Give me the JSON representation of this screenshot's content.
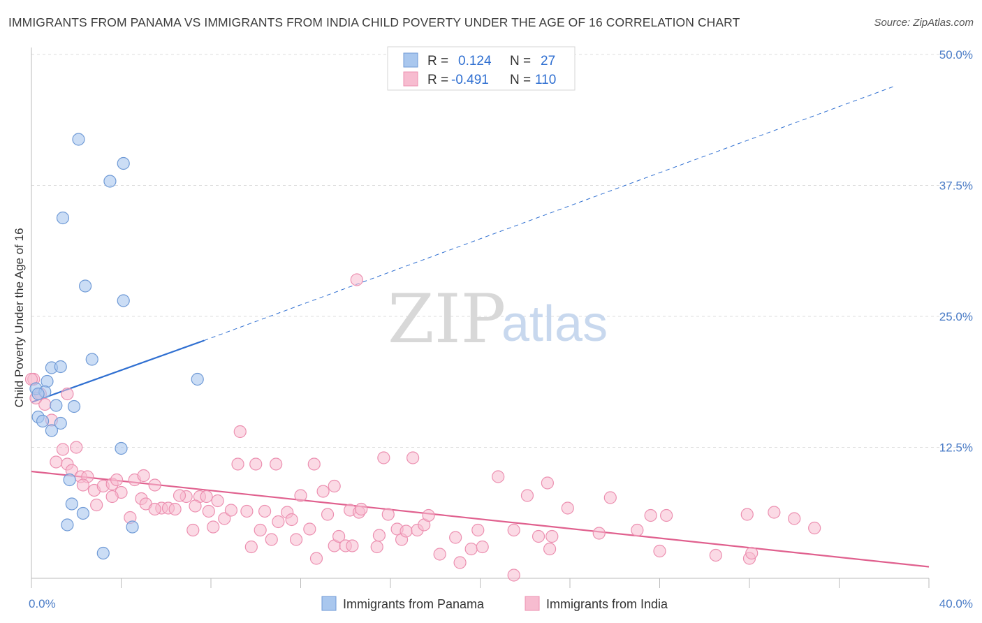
{
  "header": {
    "title": "IMMIGRANTS FROM PANAMA VS IMMIGRANTS FROM INDIA CHILD POVERTY UNDER THE AGE OF 16 CORRELATION CHART",
    "source": "Source: ZipAtlas.com"
  },
  "watermark": {
    "zip": "ZIP",
    "atlas": "atlas"
  },
  "legend": {
    "rows": [
      {
        "r_label": "R =",
        "r_value": "0.124",
        "n_label": "N =",
        "n_value": "27"
      },
      {
        "r_label": "R =",
        "r_value": "-0.491",
        "n_label": "N =",
        "n_value": "110"
      }
    ]
  },
  "colors": {
    "panama_fill": "#a9c7ee",
    "panama_stroke": "#6f9ad6",
    "panama_line": "#2f6fd1",
    "india_fill": "#f7bcd0",
    "india_stroke": "#ec8fb0",
    "india_line": "#e0608e",
    "grid": "#dddddd",
    "axis_tick_text": "#4a7cc7"
  },
  "chart_data": {
    "type": "scatter",
    "ylabel": "Child Poverty Under the Age of 16",
    "xlim": [
      0,
      40
    ],
    "ylim": [
      0,
      50
    ],
    "x_tick_labels": [
      "0.0%",
      "40.0%"
    ],
    "y_ticks": [
      12.5,
      25.0,
      37.5,
      50.0
    ],
    "y_tick_labels": [
      "12.5%",
      "25.0%",
      "37.5%",
      "50.0%"
    ],
    "grid": true,
    "legend_position": "top-center",
    "series": [
      {
        "name": "Immigrants from Panama",
        "points": [
          [
            2.1,
            41.9
          ],
          [
            4.1,
            39.6
          ],
          [
            3.5,
            37.9
          ],
          [
            1.4,
            34.4
          ],
          [
            2.4,
            27.9
          ],
          [
            4.1,
            26.5
          ],
          [
            2.7,
            20.9
          ],
          [
            0.9,
            20.1
          ],
          [
            1.3,
            20.2
          ],
          [
            7.4,
            19.0
          ],
          [
            0.7,
            18.8
          ],
          [
            0.2,
            18.1
          ],
          [
            0.6,
            17.8
          ],
          [
            0.3,
            17.6
          ],
          [
            1.1,
            16.5
          ],
          [
            1.9,
            16.4
          ],
          [
            0.3,
            15.4
          ],
          [
            0.5,
            15.0
          ],
          [
            1.3,
            14.8
          ],
          [
            0.9,
            14.1
          ],
          [
            4.0,
            12.4
          ],
          [
            1.7,
            9.4
          ],
          [
            1.8,
            7.1
          ],
          [
            2.3,
            6.2
          ],
          [
            1.6,
            5.1
          ],
          [
            4.5,
            4.9
          ],
          [
            3.2,
            2.4
          ]
        ],
        "trend": {
          "x0": 0,
          "y0": 16.8,
          "x1": 7.7,
          "y1": 22.7,
          "x_dash_end": 38.5,
          "y_dash_end": 47.0
        }
      },
      {
        "name": "Immigrants from India",
        "points": [
          [
            0.1,
            19.0
          ],
          [
            0.4,
            17.6
          ],
          [
            1.6,
            17.6
          ],
          [
            0.6,
            16.6
          ],
          [
            0.9,
            15.1
          ],
          [
            1.4,
            12.3
          ],
          [
            2.0,
            12.5
          ],
          [
            1.1,
            11.1
          ],
          [
            1.6,
            10.9
          ],
          [
            1.8,
            10.3
          ],
          [
            2.2,
            9.7
          ],
          [
            2.5,
            9.7
          ],
          [
            2.3,
            8.9
          ],
          [
            2.8,
            8.4
          ],
          [
            3.2,
            8.8
          ],
          [
            3.6,
            9.0
          ],
          [
            3.8,
            9.4
          ],
          [
            4.0,
            8.2
          ],
          [
            4.6,
            9.4
          ],
          [
            5.0,
            9.8
          ],
          [
            5.5,
            8.9
          ],
          [
            3.6,
            7.8
          ],
          [
            4.9,
            7.6
          ],
          [
            5.1,
            7.1
          ],
          [
            2.9,
            7.0
          ],
          [
            5.8,
            6.7
          ],
          [
            6.1,
            6.7
          ],
          [
            6.4,
            6.6
          ],
          [
            5.5,
            6.6
          ],
          [
            4.4,
            5.8
          ],
          [
            6.9,
            7.8
          ],
          [
            6.6,
            7.9
          ],
          [
            7.5,
            7.8
          ],
          [
            7.8,
            7.8
          ],
          [
            7.3,
            6.9
          ],
          [
            8.3,
            7.4
          ],
          [
            7.2,
            4.6
          ],
          [
            7.9,
            6.4
          ],
          [
            8.1,
            4.9
          ],
          [
            8.6,
            5.7
          ],
          [
            8.9,
            6.5
          ],
          [
            9.2,
            10.9
          ],
          [
            9.3,
            14.0
          ],
          [
            9.6,
            6.4
          ],
          [
            9.8,
            3.0
          ],
          [
            10.0,
            10.9
          ],
          [
            10.2,
            4.6
          ],
          [
            10.4,
            6.4
          ],
          [
            10.7,
            3.7
          ],
          [
            10.9,
            10.9
          ],
          [
            11.0,
            5.4
          ],
          [
            11.4,
            6.3
          ],
          [
            11.6,
            5.6
          ],
          [
            11.8,
            3.7
          ],
          [
            12.0,
            7.9
          ],
          [
            12.4,
            4.7
          ],
          [
            12.6,
            10.9
          ],
          [
            12.7,
            1.9
          ],
          [
            13.0,
            8.3
          ],
          [
            13.2,
            6.1
          ],
          [
            13.5,
            8.8
          ],
          [
            13.5,
            3.1
          ],
          [
            13.7,
            4.0
          ],
          [
            14.0,
            3.1
          ],
          [
            14.2,
            6.5
          ],
          [
            14.3,
            3.1
          ],
          [
            14.5,
            28.5
          ],
          [
            14.6,
            6.3
          ],
          [
            14.7,
            6.6
          ],
          [
            15.4,
            3.0
          ],
          [
            15.5,
            4.1
          ],
          [
            15.7,
            11.5
          ],
          [
            15.9,
            6.1
          ],
          [
            16.3,
            4.7
          ],
          [
            16.5,
            3.7
          ],
          [
            16.7,
            4.5
          ],
          [
            17.0,
            11.5
          ],
          [
            17.2,
            4.6
          ],
          [
            17.5,
            5.1
          ],
          [
            17.7,
            6.0
          ],
          [
            18.2,
            2.3
          ],
          [
            18.9,
            3.9
          ],
          [
            19.1,
            1.5
          ],
          [
            19.6,
            2.8
          ],
          [
            19.9,
            4.6
          ],
          [
            20.1,
            3.0
          ],
          [
            20.8,
            9.7
          ],
          [
            21.5,
            0.3
          ],
          [
            21.5,
            4.6
          ],
          [
            22.1,
            7.9
          ],
          [
            22.6,
            4.0
          ],
          [
            23.0,
            9.1
          ],
          [
            23.1,
            2.8
          ],
          [
            23.2,
            4.0
          ],
          [
            23.9,
            6.7
          ],
          [
            25.3,
            4.3
          ],
          [
            25.8,
            7.7
          ],
          [
            27.0,
            4.6
          ],
          [
            27.6,
            6.0
          ],
          [
            28.0,
            2.6
          ],
          [
            28.3,
            6.0
          ],
          [
            30.5,
            2.2
          ],
          [
            31.9,
            6.1
          ],
          [
            32.0,
            1.9
          ],
          [
            32.1,
            2.4
          ],
          [
            33.1,
            6.3
          ],
          [
            34.0,
            5.7
          ],
          [
            34.9,
            4.8
          ],
          [
            0.0,
            19.0
          ],
          [
            0.2,
            17.2
          ]
        ],
        "trend": {
          "x0": 0,
          "y0": 10.2,
          "x1": 40,
          "y1": 1.1
        }
      }
    ]
  }
}
